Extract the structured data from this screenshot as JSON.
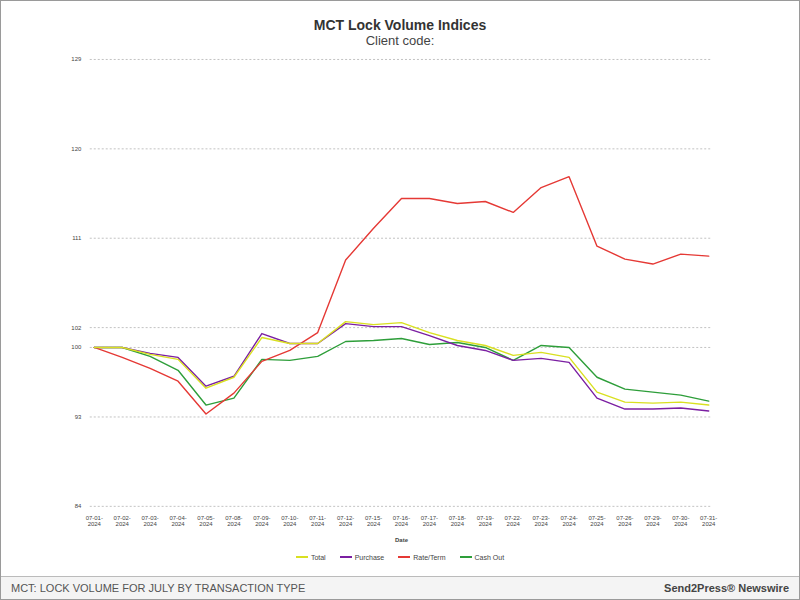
{
  "chart_data": {
    "type": "line",
    "title": "MCT Lock Volume Indices",
    "subtitle": "Client code:",
    "x_label": "Date",
    "caption": "MCT: LOCK VOLUME FOR JULY BY TRANSACTION TYPE",
    "source": "Send2Press® Newswire",
    "x": [
      "07-01-2024",
      "07-02-2024",
      "07-03-2024",
      "07-04-2024",
      "07-05-2024",
      "07-08-2024",
      "07-09-2024",
      "07-10-2024",
      "07-11-2024",
      "07-12-2024",
      "07-15-2024",
      "07-16-2024",
      "07-17-2024",
      "07-18-2024",
      "07-19-2024",
      "07-22-2024",
      "07-23-2024",
      "07-24-2024",
      "07-25-2024",
      "07-26-2024",
      "07-29-2024",
      "07-30-2024",
      "07-31-2024"
    ],
    "series": [
      {
        "name": "Total",
        "color": "#d9e021",
        "values": [
          100,
          100,
          99.3,
          98.8,
          95.9,
          97.0,
          101.0,
          100.4,
          100.4,
          102.6,
          102.3,
          102.5,
          101.5,
          100.7,
          100.2,
          99.2,
          99.5,
          99.0,
          95.5,
          94.5,
          94.4,
          94.5,
          94.2
        ]
      },
      {
        "name": "Purchase",
        "color": "#7b1fa2",
        "values": [
          100,
          100,
          99.4,
          99.0,
          96.1,
          97.1,
          101.4,
          100.4,
          100.4,
          102.4,
          102.1,
          102.1,
          101.2,
          100.2,
          99.7,
          98.7,
          98.9,
          98.5,
          94.9,
          93.8,
          93.8,
          93.9,
          93.6
        ]
      },
      {
        "name": "Rate/Term",
        "color": "#e53935",
        "values": [
          100,
          99.0,
          97.9,
          96.6,
          93.3,
          95.4,
          98.6,
          99.7,
          101.5,
          108.8,
          112.0,
          115.0,
          115.0,
          114.5,
          114.7,
          113.6,
          116.1,
          117.2,
          110.2,
          108.9,
          108.4,
          109.4,
          109.2
        ]
      },
      {
        "name": "Cash Out",
        "color": "#2e9e3a",
        "values": [
          100,
          100,
          99.1,
          97.7,
          94.2,
          94.9,
          98.8,
          98.7,
          99.1,
          100.6,
          100.7,
          100.9,
          100.3,
          100.5,
          100.0,
          98.7,
          100.2,
          100.0,
          97.0,
          95.8,
          95.5,
          95.2,
          94.6
        ]
      }
    ],
    "ylim": [
      84,
      129
    ],
    "yticks": [
      84,
      93,
      100,
      102,
      111,
      120,
      129
    ],
    "grid": true,
    "legend": "bottom"
  }
}
